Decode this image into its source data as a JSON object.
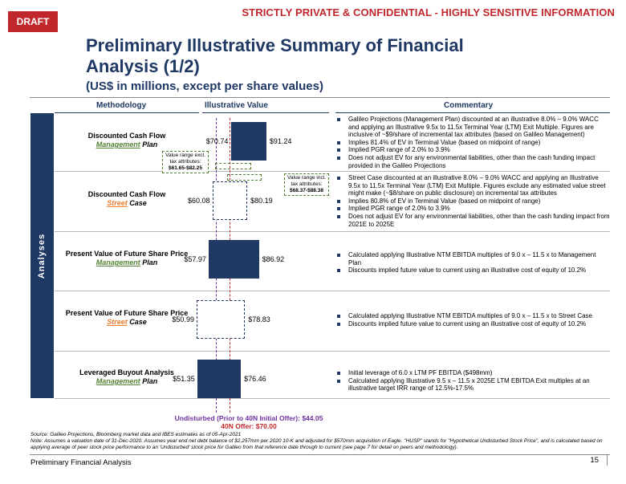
{
  "header": {
    "draft_label": "DRAFT",
    "confidential": "STRICTLY PRIVATE & CONFIDENTIAL - HIGHLY SENSITIVE INFORMATION",
    "title": "Preliminary Illustrative Summary of Financial Analysis (1/2)",
    "subtitle": "(US$ in millions, except per share values)"
  },
  "columns": {
    "methodology": "Methodology",
    "illustrative_value": "Illustrative Value",
    "commentary": "Commentary"
  },
  "side_label": "Analyses",
  "colors": {
    "navy": "#1f3864",
    "brand_red": "#c0272d",
    "management_green": "#548235",
    "street_orange": "#ed7d31",
    "undisturbed_purple": "#7030a0"
  },
  "chart_data": {
    "type": "bar",
    "orientation": "football-field",
    "unit": "US$ per share",
    "domain": [
      48,
      95
    ],
    "reference_lines": [
      {
        "name": "Undisturbed (Prior to 40N Initial Offer)",
        "value": 44.05
      },
      {
        "name": "40N Offer",
        "value": 70.0
      }
    ],
    "ranges": [
      {
        "method": "Discounted Cash Flow",
        "plan": "Management",
        "plan_suffix": "Plan",
        "low": 70.74,
        "high": 91.24,
        "low_label": "$70.74",
        "high_label": "$91.24",
        "style": "solid",
        "excl_range": {
          "low": 61.65,
          "high": 82.25
        },
        "callout": {
          "line1": "Value range excl.",
          "line2": "tax attributes:",
          "value": "$61.65-$82.25"
        }
      },
      {
        "method": "Discounted Cash Flow",
        "plan": "Street",
        "plan_suffix": "Case",
        "low": 60.08,
        "high": 80.19,
        "low_label": "$60.08",
        "high_label": "$80.19",
        "style": "dashed",
        "incl_range": {
          "low": 68.37,
          "high": 88.38
        },
        "callout": {
          "line1": "Value range incl.",
          "line2": "tax attributes:",
          "value": "$68.37-$88.38"
        }
      },
      {
        "method": "Present Value of Future Share Price",
        "plan": "Management",
        "plan_suffix": "Plan",
        "low": 57.97,
        "high": 86.92,
        "low_label": "$57.97",
        "high_label": "$86.92",
        "style": "solid"
      },
      {
        "method": "Present Value of Future Share Price",
        "plan": "Street",
        "plan_suffix": "Case",
        "low": 50.99,
        "high": 78.83,
        "low_label": "$50.99",
        "high_label": "$78.83",
        "style": "dashed"
      },
      {
        "method": "Leveraged Buyout Analysis",
        "plan": "Management",
        "plan_suffix": "Plan",
        "low": 51.35,
        "high": 76.46,
        "low_label": "$51.35",
        "high_label": "$76.46",
        "style": "solid"
      }
    ]
  },
  "commentary": [
    [
      "Galileo Projections (Management Plan) discounted at an illustrative 8.0% – 9.0% WACC and applying an Illustrative 9.5x to 11.5x Terminal Year (LTM) Exit Multiple. Figures are inclusive of ~$9/share of incremental tax attributes (based on Galileo Management)",
      "Implies 81.4% of EV in Terminal Value (based on midpoint of range)",
      "Implied PGR range of 2.0% to 3.9%",
      "Does not adjust EV for any environmental liabilities, other than the cash funding impact provided in the Galileo Projections"
    ],
    [
      "Street Case discounted at an illustrative 8.0% – 9.0% WACC and applying an Illustrative 9.5x to 11.5x Terminal Year (LTM) Exit Multiple. Figures exclude any estimated value street might make (~$8/share on public disclosure) on incremental tax attributes",
      "Implies 80.8% of EV in Terminal Value (based on midpoint of range)",
      "Implied PGR range of 2.0% to 3.9%",
      "Does not adjust EV for any environmental liabilities, other than the cash funding impact from 2021E to 2025E"
    ],
    [
      "Calculated applying Illustrative NTM EBITDA multiples of 9.0 x – 11.5 x to Management Plan",
      "Discounts implied future value to current using an illustrative cost of equity of 10.2%"
    ],
    [
      "Calculated applying Illustrative NTM EBITDA multiples of 9.0 x – 11.5 x to Street Case",
      "Discounts implied future value to current using an illustrative cost of equity of 10.2%"
    ],
    [
      "Initial leverage of 6.0 x LTM PF EBITDA ($498mm)",
      "Calculated applying Illustrative 9.5 x – 11.5 x 2025E LTM EBITDA Exit multiples at an illustrative target IRR range of 12.5%-17.5%"
    ]
  ],
  "reference_labels": {
    "undisturbed": "Undisturbed (Prior to 40N Initial Offer): $44.05",
    "offer": "40N Offer: $70.00"
  },
  "footnotes": {
    "source": "Source: Galileo Projections, Bloomberg market data and IBES estimates as of 05-Apr-2021",
    "note": "Note: Assumes a valuation date of 31-Dec-2020. Assumes year end net debt balance of $2,257mm per 2020 10-K and adjusted for $570mm acquisition of Eagle. \"HUSP\" stands for \"Hypothetical Undisturbed Stock Price\", and is calculated based on applying average of peer stock price performance to an 'Undisturbed' stock price for Galileo from that reference date through to current (see page 7 for detail on peers and methodology)."
  },
  "footer": {
    "left": "Preliminary Financial Analysis",
    "page_number": "15"
  }
}
